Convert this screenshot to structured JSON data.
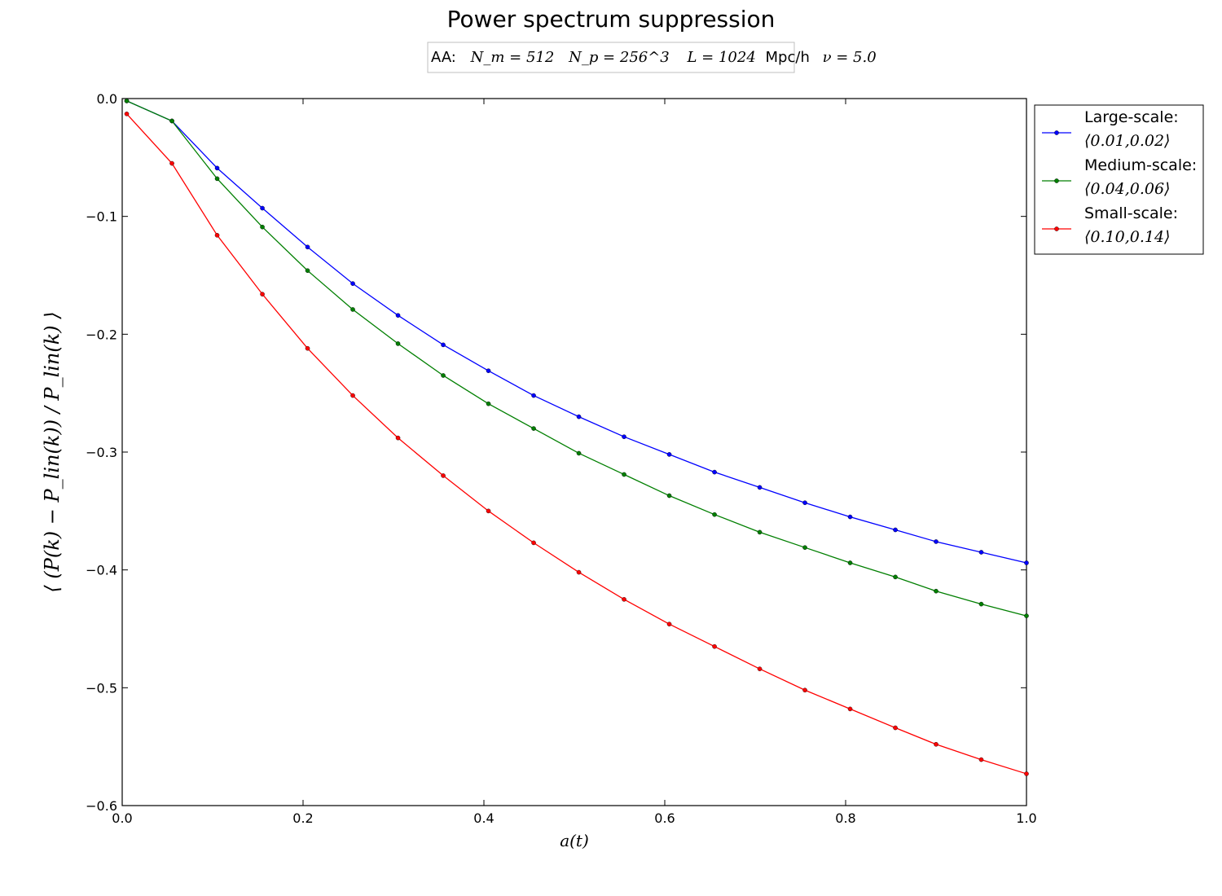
{
  "chart_data": {
    "type": "line",
    "title": "Power spectrum suppression",
    "subtitle": {
      "prefix": "AA:",
      "nm": "N_m = 512",
      "np": "N_p = 256^3",
      "L_value": "L = 1024",
      "L_unit": "Mpc/h",
      "nu": "ν = 5.0"
    },
    "xlabel": "a(t)",
    "ylabel": "⟨ (P(k) − P_lin(k)) / P_lin(k) ⟩",
    "xlim": [
      0.0,
      1.0
    ],
    "ylim": [
      -0.6,
      0.0
    ],
    "xticks": [
      "0.0",
      "0.2",
      "0.4",
      "0.6",
      "0.8",
      "1.0"
    ],
    "yticks": [
      "0.0",
      "−0.1",
      "−0.2",
      "−0.3",
      "−0.4",
      "−0.5",
      "−0.6"
    ],
    "grid": false,
    "legend_placement": "outside-right-top",
    "x": [
      0.005,
      0.055,
      0.105,
      0.155,
      0.205,
      0.255,
      0.305,
      0.355,
      0.405,
      0.455,
      0.505,
      0.555,
      0.605,
      0.655,
      0.705,
      0.755,
      0.805,
      0.855,
      0.9,
      0.95,
      1.0
    ],
    "series": [
      {
        "name": "Large-scale:",
        "range_label": "⟨0.01,0.02⟩",
        "color": "#0000ff",
        "values": [
          -0.002,
          -0.019,
          -0.059,
          -0.093,
          -0.126,
          -0.157,
          -0.184,
          -0.209,
          -0.231,
          -0.252,
          -0.27,
          -0.287,
          -0.302,
          -0.317,
          -0.33,
          -0.343,
          -0.355,
          -0.366,
          -0.376,
          -0.385,
          -0.394
        ]
      },
      {
        "name": "Medium-scale:",
        "range_label": "⟨0.04,0.06⟩",
        "color": "#007f00",
        "values": [
          -0.002,
          -0.019,
          -0.068,
          -0.109,
          -0.146,
          -0.179,
          -0.208,
          -0.235,
          -0.259,
          -0.28,
          -0.301,
          -0.319,
          -0.337,
          -0.353,
          -0.368,
          -0.381,
          -0.394,
          -0.406,
          -0.418,
          -0.429,
          -0.439
        ]
      },
      {
        "name": "Small-scale:",
        "range_label": "⟨0.10,0.14⟩",
        "color": "#ff0000",
        "values": [
          -0.013,
          -0.055,
          -0.116,
          -0.166,
          -0.212,
          -0.252,
          -0.288,
          -0.32,
          -0.35,
          -0.377,
          -0.402,
          -0.425,
          -0.446,
          -0.465,
          -0.484,
          -0.502,
          -0.518,
          -0.534,
          -0.548,
          -0.561,
          -0.573
        ]
      }
    ]
  }
}
